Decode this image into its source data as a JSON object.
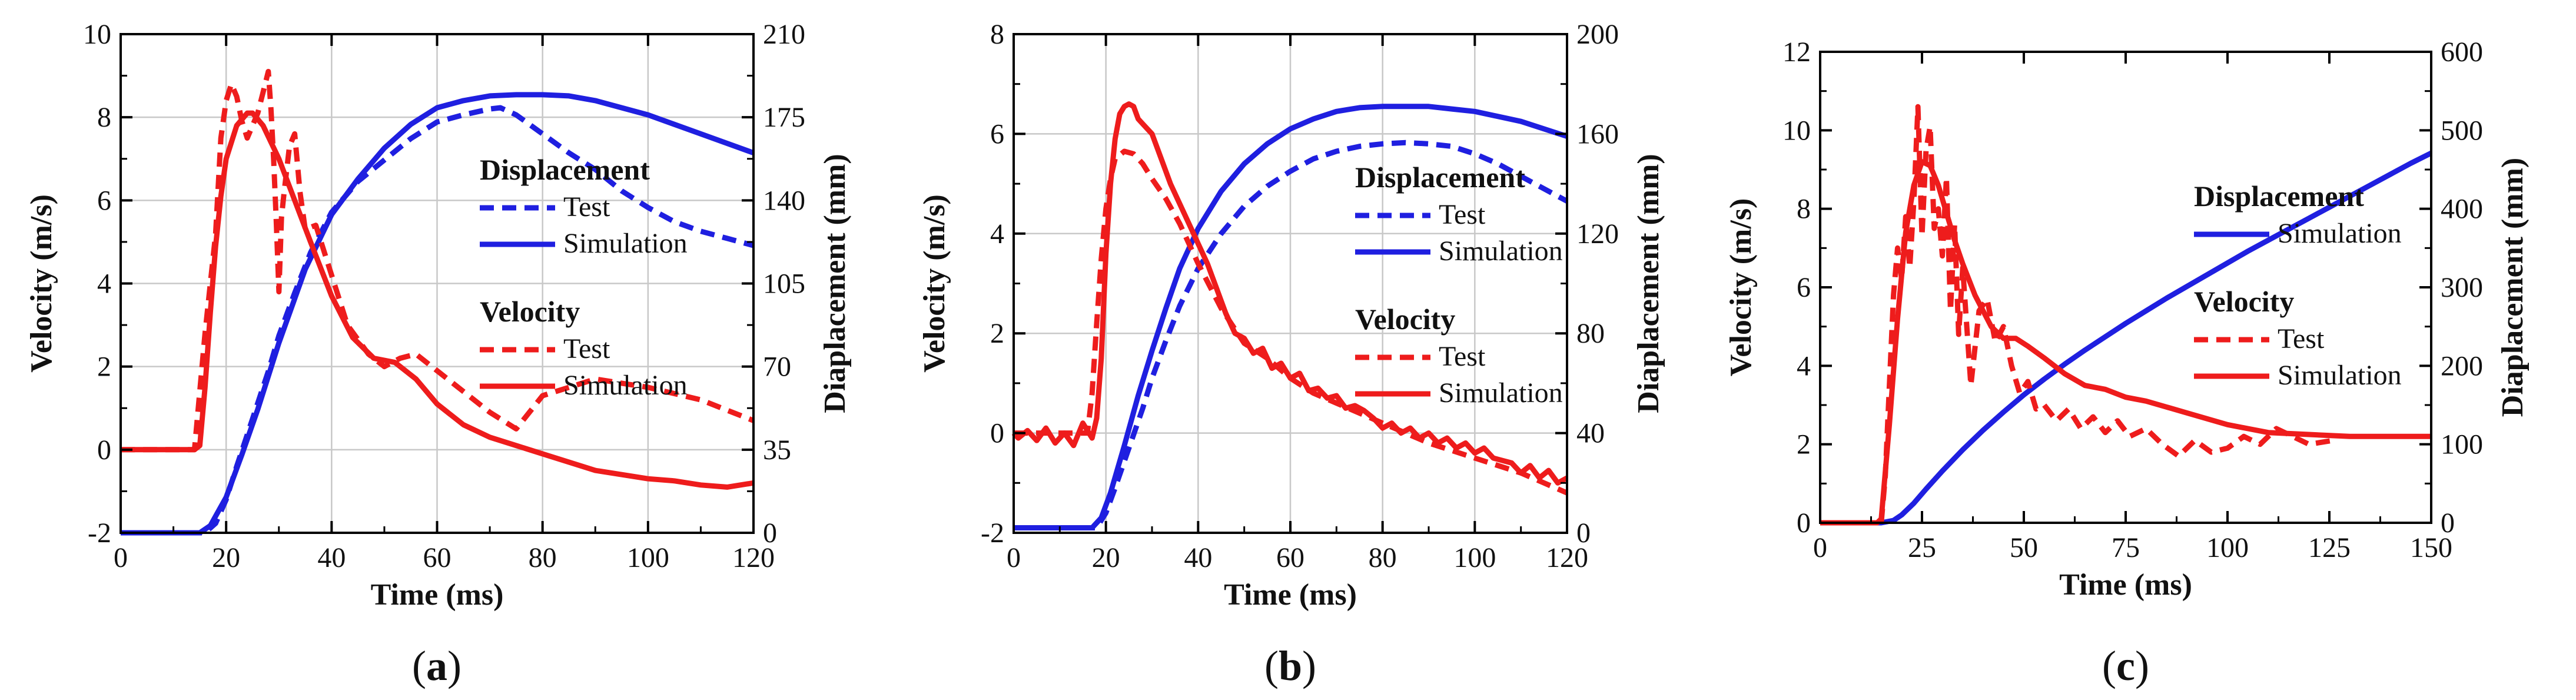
{
  "chart_data": [
    {
      "type": "line",
      "panel_label": "(a)",
      "xlabel": "Time (ms)",
      "ylabel": "Velocity (m/s)",
      "y2label": "Diaplacement (mm)",
      "xlim": [
        0,
        120
      ],
      "ylim": [
        -2,
        10
      ],
      "y2lim": [
        0,
        210
      ],
      "xticks": [
        0,
        20,
        40,
        60,
        80,
        100,
        120
      ],
      "yticks": [
        -2,
        0,
        2,
        4,
        6,
        8,
        10
      ],
      "y2ticks": [
        0,
        35,
        70,
        105,
        140,
        175,
        210
      ],
      "grid": true,
      "legend": {
        "placement": "right",
        "groups": [
          {
            "heading": "Displacement",
            "entries": [
              {
                "label": "Test",
                "color": "#1f1fe0",
                "dash": true
              },
              {
                "label": "Simulation",
                "color": "#1f1fe0",
                "dash": false
              }
            ]
          },
          {
            "heading": "Velocity",
            "entries": [
              {
                "label": "Test",
                "color": "#ee1c1c",
                "dash": true
              },
              {
                "label": "Simulation",
                "color": "#ee1c1c",
                "dash": false
              }
            ]
          }
        ]
      },
      "series": [
        {
          "name": "Displacement Test",
          "axis": "y2",
          "color": "#1f1fe0",
          "dash": true,
          "x": [
            0,
            16,
            18,
            20,
            22,
            25,
            28,
            30,
            33,
            36,
            40,
            45,
            50,
            55,
            60,
            65,
            70,
            72,
            75,
            80,
            85,
            90,
            95,
            100,
            105,
            110,
            115,
            120
          ],
          "y": [
            0,
            0,
            4,
            14,
            28,
            48,
            68,
            83,
            101,
            118,
            135,
            148,
            157,
            166,
            173,
            176,
            178.5,
            179,
            176,
            168,
            160,
            153,
            144,
            137,
            131,
            127,
            124,
            121
          ]
        },
        {
          "name": "Displacement Simulation",
          "axis": "y2",
          "color": "#1f1fe0",
          "dash": false,
          "x": [
            0,
            15,
            17,
            20,
            23,
            26,
            30,
            35,
            40,
            45,
            50,
            55,
            60,
            65,
            70,
            75,
            80,
            85,
            90,
            100,
            110,
            120
          ],
          "y": [
            0,
            0,
            3,
            15,
            33,
            52,
            80,
            111,
            134,
            149,
            162,
            172,
            179,
            182,
            184,
            184.5,
            184.5,
            184,
            182,
            176,
            168,
            160
          ]
        },
        {
          "name": "Velocity Test",
          "axis": "y",
          "color": "#ee1c1c",
          "dash": true,
          "x": [
            0,
            14,
            16,
            18,
            19,
            20,
            21,
            22,
            23,
            24,
            25,
            26,
            27,
            28,
            28.5,
            29,
            29.5,
            30,
            30.5,
            31,
            32,
            33,
            34,
            35,
            37,
            40,
            43,
            47,
            50,
            53,
            56,
            60,
            65,
            70,
            75,
            80,
            90,
            100,
            110,
            120
          ],
          "y": [
            0,
            0,
            2.8,
            5.2,
            7.5,
            8.4,
            8.8,
            8.5,
            7.9,
            7.5,
            7.8,
            8.1,
            8.6,
            9.1,
            8.2,
            7.0,
            5.5,
            3.8,
            5.6,
            6.2,
            7.3,
            7.6,
            6.2,
            5.3,
            5.4,
            4.2,
            3.0,
            2.3,
            2.0,
            2.2,
            2.3,
            1.9,
            1.4,
            0.9,
            0.5,
            1.3,
            1.7,
            1.5,
            1.2,
            0.7
          ]
        },
        {
          "name": "Velocity Simulation",
          "axis": "y",
          "color": "#ee1c1c",
          "dash": false,
          "x": [
            0,
            14,
            15,
            16,
            17,
            18,
            19,
            20,
            22,
            24,
            25,
            27,
            30,
            33,
            36,
            40,
            44,
            48,
            52,
            56,
            60,
            65,
            70,
            75,
            80,
            90,
            100,
            105,
            110,
            115,
            120
          ],
          "y": [
            0,
            0,
            0.1,
            1.5,
            3.3,
            4.9,
            6.1,
            7.0,
            7.8,
            8.1,
            8.1,
            7.8,
            7.0,
            6.0,
            5.0,
            3.7,
            2.7,
            2.2,
            2.1,
            1.7,
            1.1,
            0.6,
            0.3,
            0.1,
            -0.1,
            -0.5,
            -0.7,
            -0.75,
            -0.85,
            -0.9,
            -0.8
          ]
        }
      ]
    },
    {
      "type": "line",
      "panel_label": "(b)",
      "xlabel": "Time (ms)",
      "ylabel": "Velocity (m/s)",
      "y2label": "Diaplacement (mm)",
      "xlim": [
        0,
        120
      ],
      "ylim": [
        -2,
        8
      ],
      "y2lim": [
        0,
        200
      ],
      "xticks": [
        0,
        20,
        40,
        60,
        80,
        100,
        120
      ],
      "yticks": [
        -2,
        0,
        2,
        4,
        6,
        8
      ],
      "y2ticks": [
        0,
        40,
        80,
        120,
        160,
        200
      ],
      "grid": true,
      "legend": {
        "placement": "right",
        "groups": [
          {
            "heading": "Displacement",
            "entries": [
              {
                "label": "Test",
                "color": "#1f1fe0",
                "dash": true
              },
              {
                "label": "Simulation",
                "color": "#1f1fe0",
                "dash": false
              }
            ]
          },
          {
            "heading": "Velocity",
            "entries": [
              {
                "label": "Test",
                "color": "#ee1c1c",
                "dash": true
              },
              {
                "label": "Simulation",
                "color": "#ee1c1c",
                "dash": false
              }
            ]
          }
        ]
      },
      "series": [
        {
          "name": "Displacement Test",
          "axis": "y2",
          "color": "#1f1fe0",
          "dash": true,
          "x": [
            0,
            18,
            20,
            22,
            25,
            28,
            30,
            33,
            36,
            40,
            45,
            50,
            55,
            60,
            65,
            70,
            75,
            80,
            85,
            90,
            95,
            100,
            105,
            110,
            115,
            120
          ],
          "y": [
            2,
            2,
            8,
            18,
            34,
            50,
            62,
            77,
            91,
            106,
            120,
            131,
            139,
            145,
            150,
            153,
            155,
            156,
            156.5,
            156,
            155,
            152,
            148,
            143,
            138,
            133
          ]
        },
        {
          "name": "Displacement Simulation",
          "axis": "y2",
          "color": "#1f1fe0",
          "dash": false,
          "x": [
            0,
            17,
            19,
            21,
            24,
            27,
            30,
            33,
            36,
            40,
            45,
            50,
            55,
            60,
            65,
            70,
            75,
            80,
            85,
            90,
            95,
            100,
            110,
            120
          ],
          "y": [
            2,
            2,
            6,
            16,
            35,
            55,
            73,
            90,
            106,
            122,
            137,
            148,
            156,
            162,
            166,
            169,
            170.5,
            171,
            171,
            171,
            170,
            169,
            165,
            159
          ]
        },
        {
          "name": "Velocity Test",
          "axis": "y",
          "color": "#ee1c1c",
          "dash": true,
          "x": [
            0,
            16,
            17,
            18,
            19,
            20,
            21,
            22,
            24,
            26,
            28,
            30,
            33,
            36,
            40,
            45,
            50,
            55,
            60,
            65,
            70,
            75,
            80,
            85,
            90,
            95,
            100,
            105,
            110,
            115,
            120
          ],
          "y": [
            0,
            0,
            0.8,
            2.2,
            3.5,
            4.5,
            5.1,
            5.5,
            5.65,
            5.6,
            5.4,
            5.1,
            4.7,
            4.2,
            3.4,
            2.5,
            1.8,
            1.5,
            1.1,
            0.8,
            0.6,
            0.4,
            0.2,
            0.0,
            -0.2,
            -0.35,
            -0.5,
            -0.65,
            -0.8,
            -1.0,
            -1.2
          ]
        },
        {
          "name": "Velocity Simulation",
          "axis": "y",
          "color": "#ee1c1c",
          "dash": false,
          "x": [
            0,
            1,
            3,
            5,
            7,
            9,
            11,
            13,
            15,
            17,
            18,
            19,
            20,
            21,
            22,
            23,
            24,
            25,
            26,
            27,
            28,
            30,
            32,
            34,
            36,
            38,
            40,
            42,
            44,
            46,
            48,
            50,
            52,
            54,
            56,
            58,
            60,
            62,
            64,
            66,
            68,
            70,
            72,
            74,
            76,
            78,
            80,
            82,
            84,
            86,
            88,
            90,
            92,
            94,
            96,
            98,
            100,
            102,
            104,
            106,
            108,
            110,
            112,
            114,
            116,
            118,
            120
          ],
          "y": [
            0,
            -0.1,
            0.05,
            -0.15,
            0.1,
            -0.2,
            0.0,
            -0.25,
            0.2,
            -0.1,
            0.3,
            1.5,
            3.6,
            5.0,
            5.9,
            6.4,
            6.55,
            6.6,
            6.55,
            6.3,
            6.2,
            6.0,
            5.5,
            5.0,
            4.6,
            4.2,
            3.8,
            3.4,
            2.9,
            2.4,
            2.0,
            1.9,
            1.6,
            1.7,
            1.3,
            1.4,
            1.1,
            1.2,
            0.85,
            0.9,
            0.7,
            0.75,
            0.5,
            0.55,
            0.45,
            0.3,
            0.1,
            0.2,
            0.0,
            0.1,
            -0.1,
            0.0,
            -0.2,
            -0.1,
            -0.3,
            -0.2,
            -0.4,
            -0.3,
            -0.5,
            -0.55,
            -0.6,
            -0.8,
            -0.65,
            -0.9,
            -0.75,
            -1.0,
            -0.9
          ]
        }
      ]
    },
    {
      "type": "line",
      "panel_label": "(c)",
      "xlabel": "Time (ms)",
      "ylabel": "Velocity (m/s)",
      "y2label": "Diaplacement (mm)",
      "xlim": [
        0,
        150
      ],
      "ylim": [
        0,
        12
      ],
      "y2lim": [
        0,
        600
      ],
      "xticks": [
        0,
        25,
        50,
        75,
        100,
        125,
        150
      ],
      "yticks": [
        0,
        2,
        4,
        6,
        8,
        10,
        12
      ],
      "y2ticks": [
        0,
        100,
        200,
        300,
        400,
        500,
        600
      ],
      "grid": false,
      "legend": {
        "placement": "right",
        "groups": [
          {
            "heading": "Displacement",
            "entries": [
              {
                "label": "Simulation",
                "color": "#1f1fe0",
                "dash": false
              }
            ]
          },
          {
            "heading": "Velocity",
            "entries": [
              {
                "label": "Test",
                "color": "#ee1c1c",
                "dash": true
              },
              {
                "label": "Simulation",
                "color": "#ee1c1c",
                "dash": false
              }
            ]
          }
        ]
      },
      "series": [
        {
          "name": "Displacement Simulation",
          "axis": "y2",
          "color": "#1f1fe0",
          "dash": false,
          "x": [
            0,
            15,
            18,
            20,
            23,
            26,
            30,
            35,
            40,
            45,
            50,
            55,
            60,
            65,
            70,
            75,
            80,
            85,
            90,
            95,
            100,
            105,
            110,
            115,
            120,
            125,
            130,
            135,
            140,
            145,
            150
          ],
          "y": [
            0,
            0,
            3,
            10,
            25,
            43,
            66,
            93,
            118,
            141,
            163,
            183,
            202,
            220,
            237,
            254,
            270,
            286,
            301,
            316,
            331,
            346,
            360,
            374,
            388,
            402,
            416,
            430,
            444,
            458,
            471
          ]
        },
        {
          "name": "Velocity Test",
          "axis": "y",
          "color": "#ee1c1c",
          "dash": true,
          "x": [
            15,
            16,
            17,
            18,
            19,
            20,
            21,
            22,
            23,
            24,
            25,
            26,
            27,
            28,
            29,
            30,
            31,
            32,
            33,
            34,
            35,
            37,
            39,
            41,
            43,
            45,
            47,
            49,
            51,
            53,
            55,
            58,
            61,
            64,
            67,
            70,
            73,
            76,
            80,
            84,
            88,
            92,
            96,
            100,
            104,
            108,
            112,
            116,
            120,
            126
          ],
          "y": [
            0,
            1.2,
            3.5,
            5.8,
            7.0,
            6.2,
            7.8,
            6.5,
            8.2,
            10.6,
            7.3,
            9.5,
            10.1,
            7.5,
            8.0,
            6.8,
            8.8,
            5.4,
            7.6,
            4.8,
            6.5,
            3.5,
            5.4,
            5.7,
            4.6,
            5.0,
            4.0,
            3.3,
            3.6,
            2.9,
            3.0,
            2.6,
            2.9,
            2.4,
            2.7,
            2.3,
            2.6,
            2.2,
            2.4,
            2.0,
            1.7,
            2.1,
            1.8,
            1.9,
            2.2,
            2.0,
            2.4,
            2.2,
            2.0,
            2.1
          ]
        },
        {
          "name": "Velocity Simulation",
          "axis": "y",
          "color": "#ee1c1c",
          "dash": false,
          "x": [
            0,
            14,
            15,
            17,
            19,
            21,
            23,
            25,
            27,
            29,
            31,
            33,
            35,
            38,
            42,
            45,
            48,
            51,
            55,
            60,
            65,
            70,
            75,
            80,
            85,
            90,
            95,
            100,
            105,
            110,
            120,
            130,
            140,
            150
          ],
          "y": [
            0,
            0,
            0.1,
            2.5,
            5.2,
            7.4,
            8.6,
            9.2,
            9.1,
            8.6,
            7.9,
            7.2,
            6.6,
            5.8,
            5.0,
            4.7,
            4.7,
            4.5,
            4.2,
            3.8,
            3.5,
            3.4,
            3.2,
            3.1,
            2.95,
            2.8,
            2.65,
            2.5,
            2.4,
            2.3,
            2.25,
            2.2,
            2.2,
            2.2
          ]
        }
      ]
    }
  ]
}
